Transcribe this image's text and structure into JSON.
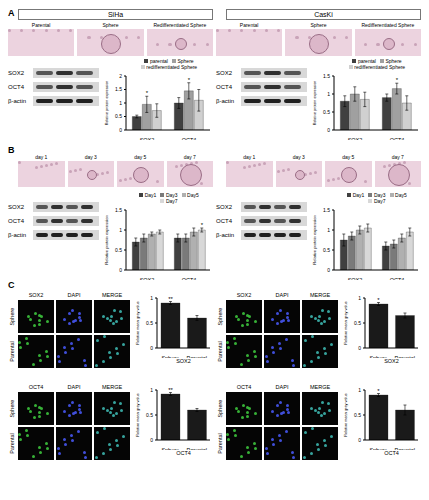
{
  "figure": {
    "panels": [
      {
        "label": "A",
        "columns": [
          {
            "cell_line": "SiHa",
            "image_labels": [
              "Parental",
              "Sphere",
              "Redifferentiated Sphere"
            ],
            "blot_labels": [
              "SOX2",
              "OCT4",
              "β-actin"
            ]
          },
          {
            "cell_line": "CasKi",
            "image_labels": [
              "Parental",
              "Sphere",
              "Redifferentiated Sphere"
            ],
            "blot_labels": [
              "SOX2",
              "OCT4",
              "β-actin"
            ]
          }
        ]
      },
      {
        "label": "B",
        "columns": [
          {
            "image_labels": [
              "day 1",
              "day 3",
              "day 5",
              "day 7"
            ],
            "blot_labels": [
              "SOX2",
              "OCT4",
              "β-actin"
            ]
          },
          {
            "image_labels": [
              "day 1",
              "day 3",
              "day 5",
              "day 7"
            ],
            "blot_labels": [
              "SOX2",
              "OCT4",
              "β-actin"
            ]
          }
        ]
      },
      {
        "label": "C",
        "columns": [
          {
            "stains": [
              {
                "name": "SOX2",
                "channels": [
                  "DAPI",
                  "MERGE"
                ],
                "conditions": [
                  "Sphere",
                  "Parental"
                ]
              },
              {
                "name": "OCT4",
                "channels": [
                  "DAPI",
                  "MERGE"
                ],
                "conditions": [
                  "Sphere",
                  "Parental"
                ]
              }
            ]
          },
          {
            "stains": [
              {
                "name": "SOX2",
                "channels": [
                  "DAPI",
                  "MERGE"
                ],
                "conditions": [
                  "Sphere",
                  "Parental"
                ]
              },
              {
                "name": "OCT4",
                "channels": [
                  "DAPI",
                  "MERGE"
                ],
                "conditions": [
                  "Sphere",
                  "Parental"
                ]
              }
            ]
          }
        ]
      }
    ]
  },
  "chart_data": [
    {
      "type": "bar",
      "y_label": "Relative protein expression",
      "categories": [
        "SOX2",
        "OCT4"
      ],
      "legend": "top",
      "ylim": [
        0,
        2
      ],
      "yticks": [
        0,
        0.5,
        1,
        1.5,
        2
      ],
      "series": [
        {
          "name": "parental",
          "color": "#404040",
          "values": [
            0.5,
            1.0
          ],
          "errors": [
            0.05,
            0.2
          ]
        },
        {
          "name": "Sphere",
          "color": "#a0a0a0",
          "values": [
            0.95,
            1.45
          ],
          "errors": [
            0.3,
            0.3
          ],
          "significance": [
            "*",
            "*"
          ]
        },
        {
          "name": "redifferentiated Sphere",
          "color": "#d0d0d0",
          "values": [
            0.72,
            1.1
          ],
          "errors": [
            0.25,
            0.4
          ]
        }
      ]
    },
    {
      "type": "bar",
      "y_label": "Relative protein expression",
      "categories": [
        "SOX2",
        "OCT4"
      ],
      "legend": "top",
      "ylim": [
        0,
        1.5
      ],
      "yticks": [
        0,
        0.5,
        1,
        1.5
      ],
      "series": [
        {
          "name": "parental",
          "color": "#404040",
          "values": [
            0.8,
            0.9
          ],
          "errors": [
            0.15,
            0.1
          ]
        },
        {
          "name": "Sphere",
          "color": "#a0a0a0",
          "values": [
            1.0,
            1.15
          ],
          "errors": [
            0.2,
            0.15
          ],
          "significance": [
            null,
            "*"
          ]
        },
        {
          "name": "redifferentiated Sphere",
          "color": "#d0d0d0",
          "values": [
            0.85,
            0.75
          ],
          "errors": [
            0.2,
            0.2
          ]
        }
      ]
    },
    {
      "type": "bar",
      "y_label": "Relative protein expression",
      "categories": [
        "SOX2",
        "OCT4"
      ],
      "legend": "top",
      "ylim": [
        0,
        1.5
      ],
      "yticks": [
        0,
        0.5,
        1,
        1.5
      ],
      "series": [
        {
          "name": "Day1",
          "color": "#404040",
          "values": [
            0.7,
            0.8
          ],
          "errors": [
            0.1,
            0.1
          ]
        },
        {
          "name": "Day3",
          "color": "#7a7a7a",
          "values": [
            0.8,
            0.8
          ],
          "errors": [
            0.1,
            0.1
          ]
        },
        {
          "name": "Day5",
          "color": "#b0b0b0",
          "values": [
            0.9,
            0.95
          ],
          "errors": [
            0.05,
            0.1
          ]
        },
        {
          "name": "Day7",
          "color": "#d8d8d8",
          "values": [
            0.95,
            1.0
          ],
          "errors": [
            0.05,
            0.05
          ],
          "significance": [
            null,
            "*"
          ]
        }
      ]
    },
    {
      "type": "bar",
      "y_label": "Relative protein expression",
      "categories": [
        "SOX2",
        "OCT4"
      ],
      "legend": "top",
      "ylim": [
        0,
        1.5
      ],
      "yticks": [
        0,
        0.5,
        1,
        1.5
      ],
      "series": [
        {
          "name": "Day1",
          "color": "#404040",
          "values": [
            0.75,
            0.6
          ],
          "errors": [
            0.15,
            0.1
          ]
        },
        {
          "name": "Day3",
          "color": "#7a7a7a",
          "values": [
            0.85,
            0.65
          ],
          "errors": [
            0.1,
            0.1
          ]
        },
        {
          "name": "Day5",
          "color": "#b0b0b0",
          "values": [
            1.0,
            0.8
          ],
          "errors": [
            0.1,
            0.1
          ]
        },
        {
          "name": "Day7",
          "color": "#d8d8d8",
          "values": [
            1.05,
            0.95
          ],
          "errors": [
            0.1,
            0.1
          ]
        }
      ]
    },
    {
      "type": "bar",
      "y_label": "Relative mean grey value",
      "x_label": "SOX2",
      "categories": [
        "Sphere",
        "Parental"
      ],
      "ylim": [
        0,
        1
      ],
      "yticks": [
        0,
        0.5,
        1
      ],
      "series": [
        {
          "name": "SOX2",
          "color": "#1a1a1a",
          "values": [
            0.9,
            0.6
          ],
          "errors": [
            0.03,
            0.05
          ],
          "significance": [
            "**",
            null
          ]
        }
      ]
    },
    {
      "type": "bar",
      "y_label": "Relative mean grey value",
      "x_label": "OCT4",
      "categories": [
        "Sphere",
        "Parental"
      ],
      "ylim": [
        0,
        1
      ],
      "yticks": [
        0,
        0.5,
        1
      ],
      "series": [
        {
          "name": "OCT4",
          "color": "#1a1a1a",
          "values": [
            0.92,
            0.6
          ],
          "errors": [
            0.03,
            0.03
          ],
          "significance": [
            "**",
            null
          ]
        }
      ]
    },
    {
      "type": "bar",
      "y_label": "Relative mean grey value",
      "x_label": "SOX2",
      "categories": [
        "Sphere",
        "Parental"
      ],
      "ylim": [
        0,
        1
      ],
      "yticks": [
        0,
        0.5,
        1
      ],
      "series": [
        {
          "name": "SOX2",
          "color": "#1a1a1a",
          "values": [
            0.88,
            0.65
          ],
          "errors": [
            0.03,
            0.05
          ],
          "significance": [
            "*",
            null
          ]
        }
      ]
    },
    {
      "type": "bar",
      "y_label": "Relative mean grey value",
      "x_label": "OCT4",
      "categories": [
        "Sphere",
        "Parental"
      ],
      "ylim": [
        0,
        1
      ],
      "yticks": [
        0,
        0.5,
        1
      ],
      "series": [
        {
          "name": "OCT4",
          "color": "#1a1a1a",
          "values": [
            0.9,
            0.6
          ],
          "errors": [
            0.03,
            0.1
          ],
          "significance": [
            "*",
            null
          ]
        }
      ]
    }
  ]
}
